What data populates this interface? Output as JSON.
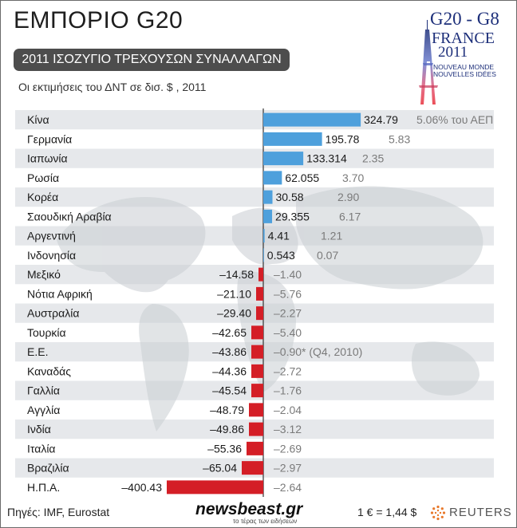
{
  "header": {
    "title": "ΕΜΠΟΡΙΟ G20",
    "subtitle": "2011 ΙΣΟΖΥΓΙΟ ΤΡΕΧΟΥΣΩΝ ΣΥΝΑΛΛΑΓΩΝ",
    "note": "Οι εκτιμήσεις του ΔΝΤ σε δισ. $ , 2011"
  },
  "logo": {
    "line1": "G20 - G8",
    "line2": "FRANCE",
    "line3": "2011",
    "line4": "NOUVEAU MONDE",
    "line5": "NOUVELLES IDÉES"
  },
  "footer": {
    "sources": "Πηγές: IMF, Eurostat",
    "brand": "newsbeast.gr",
    "tagline": "το τέρας των ειδήσεων",
    "rate": "1 € = 1,44 $",
    "reuters": "REUTERS"
  },
  "colors": {
    "positive": "#4ea0dc",
    "negative": "#d41e26",
    "band": "#e6e8eb",
    "pct_text": "#7a7a7a"
  },
  "chart_data": {
    "type": "bar",
    "orientation": "horizontal",
    "unit": "δισ. $",
    "categories": [
      "Κίνα",
      "Γερμανία",
      "Ιαπωνία",
      "Ρωσία",
      "Κορέα",
      "Σαουδική Αραβία",
      "Αργεντινή",
      "Ινδονησία",
      "Μεξικό",
      "Νότια Αφρική",
      "Αυστραλία",
      "Τουρκία",
      "Ε.Ε.",
      "Καναδάς",
      "Γαλλία",
      "Αγγλία",
      "Ινδία",
      "Ιταλία",
      "Βραζιλία",
      "Η.Π.Α."
    ],
    "value_labels": [
      "324.79",
      "195.78",
      "133.314",
      "62.055",
      "30.58",
      "29.355",
      "4.41",
      "0.543",
      "–14.58",
      "–21.10",
      "–29.40",
      "–42.65",
      "–43.86",
      "–44.36",
      "–45.54",
      "–48.79",
      "–49.86",
      "–55.36",
      "–65.04",
      "–400.43"
    ],
    "values": [
      324.79,
      195.78,
      133.314,
      62.055,
      30.58,
      29.355,
      4.41,
      0.543,
      -14.58,
      -21.1,
      -29.4,
      -42.65,
      -43.86,
      -44.36,
      -45.54,
      -48.79,
      -49.86,
      -55.36,
      -65.04,
      -400.43
    ],
    "pct_gdp_labels": [
      "5.06% του ΑΕΠ",
      "5.83",
      "2.35",
      "3.70",
      "2.90",
      "6.17",
      "1.21",
      "0.07",
      "–1.40",
      "–5.76",
      "–2.27",
      "–5.40",
      "–0.90* (Q4, 2010)",
      "–2.72",
      "–1.76",
      "–2.04",
      "–3.12",
      "–2.69",
      "–2.97",
      "–2.64"
    ]
  }
}
